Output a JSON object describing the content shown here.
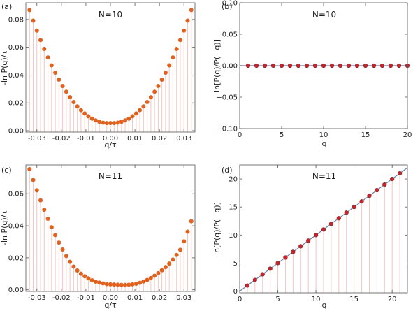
{
  "colors": {
    "marker_orange": "#E0621E",
    "marker_red": "#C1272D",
    "marker_outline": "#8E1B1F",
    "drop_line": "#F3C7C0",
    "fit_line": "#6C7FA8",
    "frame": "#555555"
  },
  "chart_data": [
    {
      "panel": "(a)",
      "title": "N=10",
      "type": "scatter",
      "xlabel": "q/τ",
      "ylabel": "-ln P(q)/τ",
      "xlim": [
        -0.0345,
        0.0345
      ],
      "ylim": [
        -0.001,
        0.092
      ],
      "xticks": [
        -0.03,
        -0.02,
        -0.01,
        0.0,
        0.01,
        0.02,
        0.03
      ],
      "xtick_labels": [
        "-0.03",
        "-0.02",
        "-0.01",
        "0.00",
        "0.01",
        "0.02",
        "0.03"
      ],
      "yticks": [
        0.0,
        0.02,
        0.04,
        0.06,
        0.08
      ],
      "ytick_labels": [
        "0.00",
        "0.02",
        "0.04",
        "0.06",
        "0.08"
      ],
      "grid": false,
      "drop_lines": true,
      "marker": "orange-circle",
      "x": [
        -0.033,
        -0.0315,
        -0.03,
        -0.0285,
        -0.027,
        -0.0255,
        -0.024,
        -0.0225,
        -0.021,
        -0.0195,
        -0.018,
        -0.0165,
        -0.015,
        -0.0135,
        -0.012,
        -0.0105,
        -0.009,
        -0.0075,
        -0.006,
        -0.0045,
        -0.003,
        -0.0015,
        0.0,
        0.0015,
        0.003,
        0.0045,
        0.006,
        0.0075,
        0.009,
        0.0105,
        0.012,
        0.0135,
        0.015,
        0.0165,
        0.018,
        0.0195,
        0.021,
        0.0225,
        0.024,
        0.0255,
        0.027,
        0.0285,
        0.03,
        0.0315,
        0.033
      ],
      "y": [
        0.0868,
        0.0792,
        0.072,
        0.0652,
        0.0588,
        0.0527,
        0.047,
        0.0417,
        0.0367,
        0.0322,
        0.028,
        0.0241,
        0.0206,
        0.0175,
        0.0148,
        0.0124,
        0.0104,
        0.0087,
        0.0074,
        0.0064,
        0.0058,
        0.0055,
        0.0055,
        0.0055,
        0.0058,
        0.0064,
        0.0074,
        0.0087,
        0.0104,
        0.0124,
        0.0148,
        0.0175,
        0.0206,
        0.0241,
        0.028,
        0.0322,
        0.0367,
        0.0417,
        0.047,
        0.0527,
        0.0588,
        0.0652,
        0.072,
        0.0792,
        0.0868
      ]
    },
    {
      "panel": "(b)",
      "title": "N=10",
      "type": "scatter",
      "xlabel": "q",
      "ylabel": "ln[P(q)/P(−q)]",
      "xlim": [
        0,
        20
      ],
      "ylim": [
        -0.1,
        0.1
      ],
      "xticks": [
        0,
        5,
        10,
        15,
        20
      ],
      "xtick_labels": [
        "0",
        "5",
        "10",
        "15",
        "20"
      ],
      "yticks": [
        -0.1,
        -0.05,
        0.0,
        0.05,
        0.1
      ],
      "ytick_labels": [
        "−0.10",
        "−0.05",
        "0.00",
        "0.05",
        "0.10"
      ],
      "grid": false,
      "drop_lines": false,
      "fit_line": {
        "slope": 0,
        "intercept": 0
      },
      "marker": "red-circle",
      "x": [
        1,
        2,
        3,
        4,
        5,
        6,
        7,
        8,
        9,
        10,
        11,
        12,
        13,
        14,
        15,
        16,
        17,
        18,
        19,
        20
      ],
      "y": [
        0,
        0,
        0,
        0,
        0,
        0,
        0,
        0,
        0,
        0,
        0,
        0,
        0,
        0,
        0,
        0,
        0,
        0,
        0,
        0
      ]
    },
    {
      "panel": "(c)",
      "title": "N=11",
      "type": "scatter",
      "xlabel": "q/τ",
      "ylabel": "-ln P(q)/τ",
      "xlim": [
        -0.0345,
        0.0345
      ],
      "ylim": [
        -0.001,
        0.078
      ],
      "xticks": [
        -0.03,
        -0.02,
        -0.01,
        0.0,
        0.01,
        0.02,
        0.03
      ],
      "xtick_labels": [
        "-0.03",
        "-0.02",
        "-0.01",
        "0.00",
        "0.01",
        "0.02",
        "0.03"
      ],
      "yticks": [
        0.0,
        0.02,
        0.04,
        0.06
      ],
      "ytick_labels": [
        "0.00",
        "0.02",
        "0.04",
        "0.06"
      ],
      "grid": false,
      "drop_lines": true,
      "marker": "orange-circle",
      "x": [
        -0.033,
        -0.0315,
        -0.03,
        -0.0285,
        -0.027,
        -0.0255,
        -0.024,
        -0.0225,
        -0.021,
        -0.0195,
        -0.018,
        -0.0165,
        -0.015,
        -0.0135,
        -0.012,
        -0.0105,
        -0.009,
        -0.0075,
        -0.006,
        -0.0045,
        -0.003,
        -0.0015,
        0.0,
        0.0015,
        0.003,
        0.0045,
        0.006,
        0.0075,
        0.009,
        0.0105,
        0.012,
        0.0135,
        0.015,
        0.0165,
        0.018,
        0.0195,
        0.021,
        0.0225,
        0.024,
        0.0255,
        0.027,
        0.0285,
        0.03,
        0.0315,
        0.033
      ],
      "y": [
        0.0754,
        0.0686,
        0.0621,
        0.0559,
        0.05,
        0.0444,
        0.0391,
        0.0342,
        0.0295,
        0.0252,
        0.0211,
        0.0175,
        0.0145,
        0.0121,
        0.0101,
        0.0085,
        0.0072,
        0.006,
        0.0051,
        0.0045,
        0.004,
        0.0036,
        0.0034,
        0.0033,
        0.0032,
        0.0031,
        0.0031,
        0.0032,
        0.0034,
        0.0038,
        0.0044,
        0.0052,
        0.0062,
        0.0074,
        0.0088,
        0.0104,
        0.0122,
        0.0142,
        0.0164,
        0.0189,
        0.0218,
        0.025,
        0.0303,
        0.0363,
        0.0428
      ]
    },
    {
      "panel": "(d)",
      "title": "N=11",
      "type": "scatter",
      "xlabel": "q",
      "ylabel": "ln[P(q)/P(−q)]",
      "xlim": [
        0,
        22
      ],
      "ylim": [
        -0.3,
        22.5
      ],
      "xticks": [
        0,
        5,
        10,
        15,
        20
      ],
      "xtick_labels": [
        "0",
        "5",
        "10",
        "15",
        "20"
      ],
      "yticks": [
        0,
        5,
        10,
        15,
        20
      ],
      "ytick_labels": [
        "0",
        "5",
        "10",
        "15",
        "20"
      ],
      "grid": false,
      "drop_lines": true,
      "fit_line": {
        "slope": 1,
        "intercept": 0
      },
      "marker": "red-circle",
      "x": [
        1,
        2,
        3,
        4,
        5,
        6,
        7,
        8,
        9,
        10,
        11,
        12,
        13,
        14,
        15,
        16,
        17,
        18,
        19,
        20,
        21
      ],
      "y": [
        1,
        2,
        3,
        4,
        5,
        6,
        7,
        8,
        9,
        10,
        11,
        12,
        13,
        14,
        15,
        16,
        17,
        18,
        19,
        20,
        21
      ]
    }
  ]
}
